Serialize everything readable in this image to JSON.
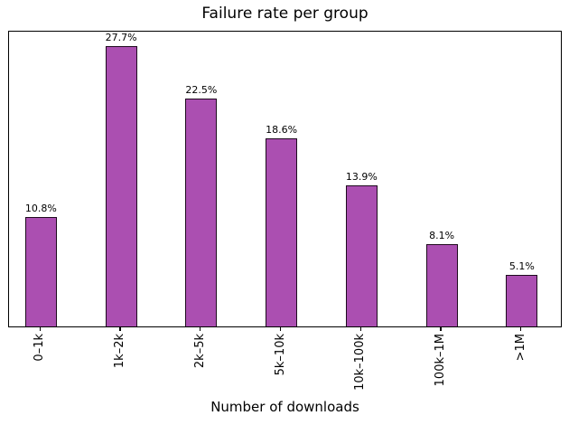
{
  "chart_data": {
    "type": "bar",
    "title": "Failure rate per group",
    "xlabel": "Number of downloads",
    "ylabel": "",
    "categories": [
      "0–1k",
      "1k–2k",
      "2k–5k",
      "5k–10k",
      "10k–100k",
      "100k–1M",
      ">1M"
    ],
    "values": [
      10.8,
      27.7,
      22.5,
      18.6,
      13.9,
      8.1,
      5.1
    ],
    "value_labels": [
      "10.8%",
      "27.7%",
      "22.5%",
      "18.6%",
      "13.9%",
      "8.1%",
      "5.1%"
    ],
    "ylim": [
      0,
      29.3
    ],
    "grid": false,
    "y_axis_ticks_visible": false,
    "x_tick_label_rotation_deg": 90,
    "legend": null,
    "bar_color": "#AB4FB1",
    "bar_edge_color": "#1e0a1e",
    "axes_edge_color": "#000000",
    "background_color": "#ffffff"
  }
}
